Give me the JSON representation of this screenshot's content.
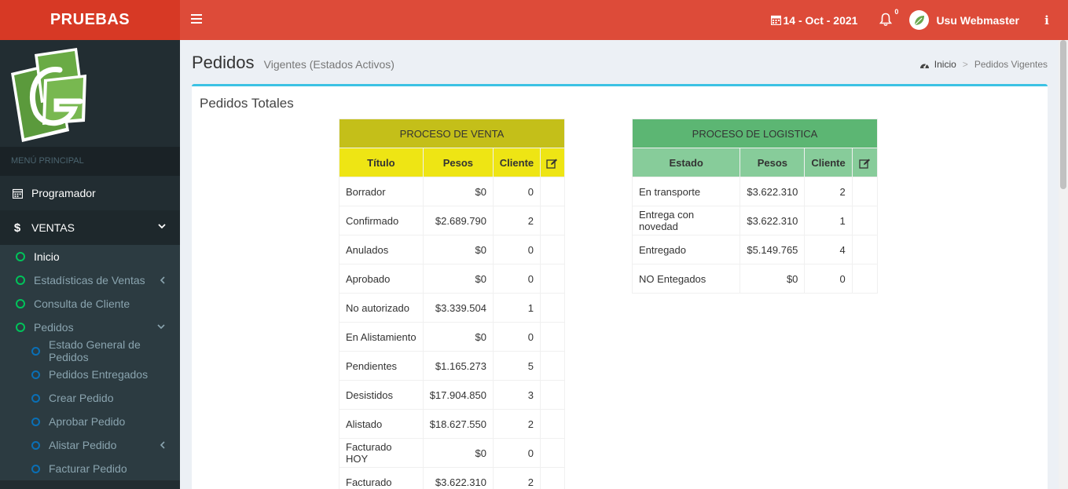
{
  "app": {
    "name": "PRUEBAS"
  },
  "topbar": {
    "date": "14 - Oct - 2021",
    "notifications_badge": "0",
    "user_name": "Usu Webmaster",
    "info_label": "i"
  },
  "sidebar": {
    "menu_header": "MENÚ PRINCIPAL",
    "items": [
      {
        "label": "Programador",
        "icon": "calendar-icon"
      },
      {
        "label": "VENTAS",
        "icon": "dollar-icon"
      }
    ],
    "ventas_sub": [
      {
        "label": "Inicio"
      },
      {
        "label": "Estadísticas de Ventas"
      },
      {
        "label": "Consulta de Cliente"
      },
      {
        "label": "Pedidos"
      }
    ],
    "pedidos_sub": [
      {
        "label": "Estado General de Pedidos"
      },
      {
        "label": "Pedidos Entregados"
      },
      {
        "label": "Crear Pedido"
      },
      {
        "label": "Aprobar Pedido"
      },
      {
        "label": "Alistar Pedido"
      },
      {
        "label": "Facturar Pedido"
      }
    ]
  },
  "page": {
    "title": "Pedidos",
    "subtitle": "Vigentes (Estados Activos)",
    "breadcrumb": {
      "home": "Inicio",
      "current": "Pedidos Vigentes"
    },
    "box_title": "Pedidos Totales"
  },
  "venta_table": {
    "group": "PROCESO DE VENTA",
    "headers": [
      "Título",
      "Pesos",
      "Cliente"
    ],
    "rows": [
      [
        "Borrador",
        "$0",
        "0"
      ],
      [
        "Confirmado",
        "$2.689.790",
        "2"
      ],
      [
        "Anulados",
        "$0",
        "0"
      ],
      [
        "Aprobado",
        "$0",
        "0"
      ],
      [
        "No autorizado",
        "$3.339.504",
        "1"
      ],
      [
        "En Alistamiento",
        "$0",
        "0"
      ],
      [
        "Pendientes",
        "$1.165.273",
        "5"
      ],
      [
        "Desistidos",
        "$17.904.850",
        "3"
      ],
      [
        "Alistado",
        "$18.627.550",
        "2"
      ],
      [
        "Facturado HOY",
        "$0",
        "0"
      ],
      [
        "Facturado",
        "$3.622.310",
        "2"
      ]
    ]
  },
  "log_table": {
    "group": "PROCESO DE LOGISTICA",
    "headers": [
      "Estado",
      "Pesos",
      "Cliente"
    ],
    "rows": [
      [
        "En transporte",
        "$3.622.310",
        "2"
      ],
      [
        "Entrega con novedad",
        "$3.622.310",
        "1"
      ],
      [
        "Entregado",
        "$5.149.765",
        "4"
      ],
      [
        "NO Entegados",
        "$0",
        "0"
      ]
    ]
  }
}
